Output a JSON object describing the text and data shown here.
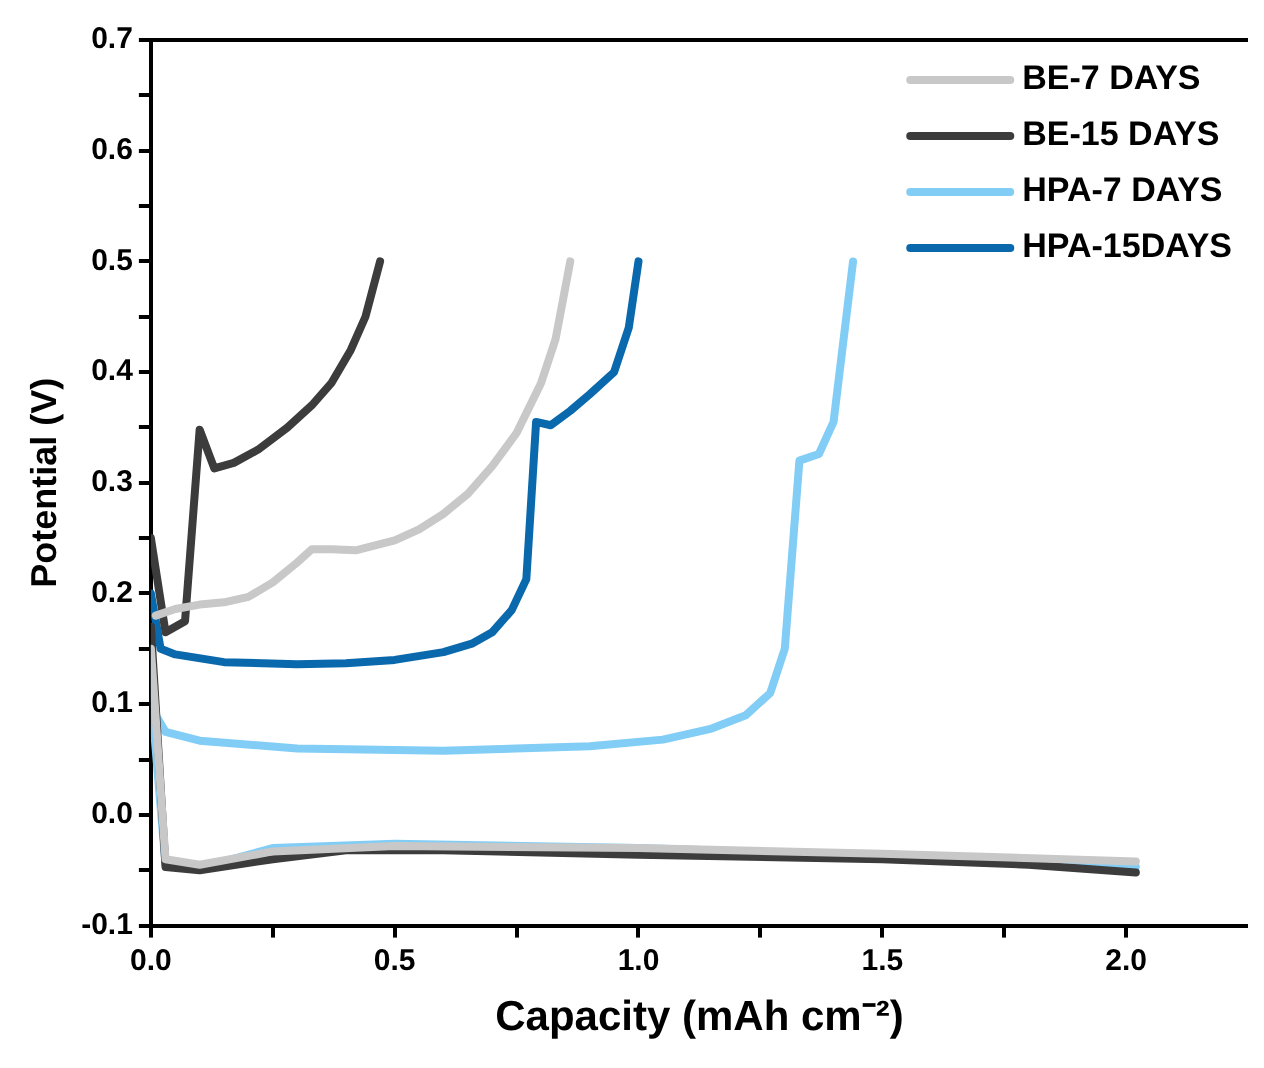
{
  "chart_data": {
    "type": "line",
    "xlabel": "Capacity (mAh cm⁻²)",
    "ylabel": "Potential (V)",
    "xlim": [
      0,
      2.25
    ],
    "ylim": [
      -0.1,
      0.7
    ],
    "xticks": [
      {
        "value": 0,
        "label": "0.0"
      },
      {
        "value": 0.25,
        "label": null
      },
      {
        "value": 0.5,
        "label": "0.5"
      },
      {
        "value": 0.75,
        "label": null
      },
      {
        "value": 1,
        "label": "1.0"
      },
      {
        "value": 1.25,
        "label": null
      },
      {
        "value": 1.5,
        "label": "1.5"
      },
      {
        "value": 1.75,
        "label": null
      },
      {
        "value": 2,
        "label": "2.0"
      }
    ],
    "yticks": [
      {
        "value": -0.1,
        "label": "-0.1"
      },
      {
        "value": -0.05,
        "label": null
      },
      {
        "value": 0,
        "label": "0.0"
      },
      {
        "value": 0.05,
        "label": null
      },
      {
        "value": 0.1,
        "label": "0.1"
      },
      {
        "value": 0.15,
        "label": null
      },
      {
        "value": 0.2,
        "label": "0.2"
      },
      {
        "value": 0.25,
        "label": null
      },
      {
        "value": 0.3,
        "label": "0.3"
      },
      {
        "value": 0.35,
        "label": null
      },
      {
        "value": 0.4,
        "label": "0.4"
      },
      {
        "value": 0.45,
        "label": null
      },
      {
        "value": 0.5,
        "label": "0.5"
      },
      {
        "value": 0.55,
        "label": null
      },
      {
        "value": 0.6,
        "label": "0.6"
      },
      {
        "value": 0.65,
        "label": null
      },
      {
        "value": 0.7,
        "label": "0.7"
      }
    ],
    "grid": false,
    "legend": "top right",
    "marker": "none",
    "line_style": "solid",
    "series": [
      {
        "name": "BE-7 DAYS",
        "color": "#c8c8c8",
        "x": [
          0,
          0.03,
          0.1,
          0.25,
          0.5,
          1.0,
          1.5,
          2.02,
          null,
          0.01,
          0.05,
          0.1,
          0.15,
          0.2,
          0.25,
          0.3,
          0.33,
          0.37,
          0.42,
          0.5,
          0.55,
          0.6,
          0.65,
          0.7,
          0.75,
          0.8,
          0.83,
          0.86
        ],
        "values": [
          0.15,
          -0.04,
          -0.045,
          -0.033,
          -0.028,
          -0.03,
          -0.035,
          -0.042,
          null,
          0.18,
          0.186,
          0.19,
          0.192,
          0.197,
          0.21,
          0.228,
          0.24,
          0.24,
          0.239,
          0.248,
          0.258,
          0.272,
          0.29,
          0.315,
          0.345,
          0.39,
          0.43,
          0.5
        ]
      },
      {
        "name": "BE-15 DAYS",
        "color": "#3c3c3c",
        "x": [
          0,
          0.03,
          0.1,
          0.25,
          0.4,
          0.6,
          1.0,
          1.5,
          1.8,
          2.02,
          null,
          0,
          0.03,
          0.07,
          0.1,
          0.13,
          0.17,
          0.22,
          0.28,
          0.33,
          0.37,
          0.41,
          0.44,
          0.47
        ],
        "values": [
          0.17,
          -0.047,
          -0.05,
          -0.04,
          -0.032,
          -0.032,
          -0.036,
          -0.04,
          -0.045,
          -0.052,
          null,
          0.25,
          0.165,
          0.175,
          0.348,
          0.313,
          0.318,
          0.33,
          0.35,
          0.37,
          0.39,
          0.42,
          0.45,
          0.5
        ]
      },
      {
        "name": "HPA-7 DAYS",
        "color": "#82cdf5",
        "x": [
          0,
          0.03,
          0.1,
          0.25,
          0.5,
          1.0,
          1.5,
          2.02,
          null,
          0,
          0.01,
          0.03,
          0.1,
          0.3,
          0.6,
          0.9,
          1.05,
          1.15,
          1.22,
          1.27,
          1.3,
          1.33,
          1.37,
          1.4,
          1.44
        ],
        "values": [
          0.11,
          -0.045,
          -0.048,
          -0.03,
          -0.026,
          -0.03,
          -0.037,
          -0.047,
          null,
          0.15,
          0.09,
          0.075,
          0.067,
          0.06,
          0.058,
          0.062,
          0.068,
          0.078,
          0.09,
          0.11,
          0.15,
          0.32,
          0.326,
          0.355,
          0.5
        ]
      },
      {
        "name": "HPA-15DAYS",
        "color": "#0a68ac",
        "x": [
          0,
          0.02,
          0.05,
          0.15,
          0.3,
          0.4,
          0.5,
          0.6,
          0.66,
          0.7,
          0.74,
          0.77,
          0.79,
          0.82,
          0.86,
          0.9,
          0.95,
          0.98,
          1.0
        ],
        "values": [
          0.2,
          0.15,
          0.145,
          0.138,
          0.136,
          0.137,
          0.14,
          0.147,
          0.155,
          0.165,
          0.185,
          0.213,
          0.355,
          0.352,
          0.365,
          0.38,
          0.4,
          0.44,
          0.5
        ]
      }
    ]
  }
}
